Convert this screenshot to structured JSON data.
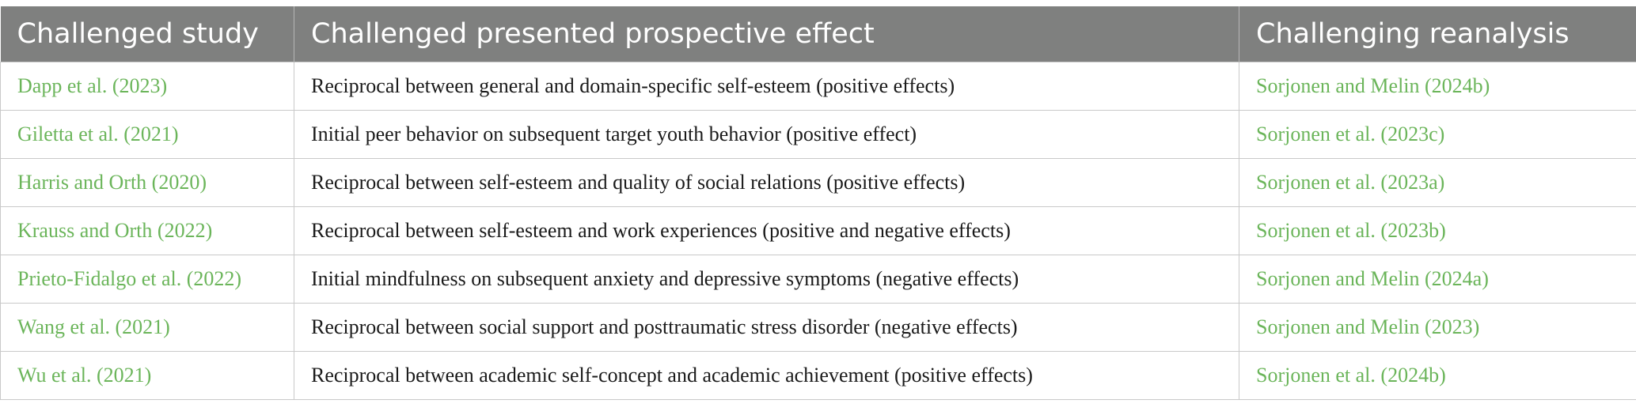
{
  "table": {
    "headers": [
      "Challenged study",
      "Challenged presented prospective effect",
      "Challenging reanalysis"
    ],
    "rows": [
      {
        "study": "Dapp et al. (2023)",
        "effect": "Reciprocal between general and domain-specific self-esteem (positive effects)",
        "reanalysis": "Sorjonen and Melin (2024b)"
      },
      {
        "study": "Giletta et al. (2021)",
        "effect": "Initial peer behavior on subsequent target youth behavior (positive effect)",
        "reanalysis": "Sorjonen et al. (2023c)"
      },
      {
        "study": "Harris and Orth (2020)",
        "effect": "Reciprocal between self-esteem and quality of social relations (positive effects)",
        "reanalysis": "Sorjonen et al. (2023a)"
      },
      {
        "study": "Krauss and Orth (2022)",
        "effect": "Reciprocal between self-esteem and work experiences (positive and negative effects)",
        "reanalysis": "Sorjonen et al. (2023b)"
      },
      {
        "study": "Prieto-Fidalgo et al. (2022)",
        "effect": "Initial mindfulness on subsequent anxiety and depressive symptoms (negative effects)",
        "reanalysis": "Sorjonen and Melin (2024a)"
      },
      {
        "study": "Wang et al. (2021)",
        "effect": "Reciprocal between social support and posttraumatic stress disorder (negative effects)",
        "reanalysis": "Sorjonen and Melin (2023)"
      },
      {
        "study": "Wu et al. (2021)",
        "effect": "Reciprocal between academic self-concept and academic achievement (positive effects)",
        "reanalysis": "Sorjonen et al. (2024b)"
      }
    ]
  },
  "colors": {
    "header_background": "#7f807f",
    "header_text": "#ffffff",
    "link_text": "#6bb55a",
    "body_text": "#1a1a1a",
    "grid_line": "#c9c9c9"
  }
}
